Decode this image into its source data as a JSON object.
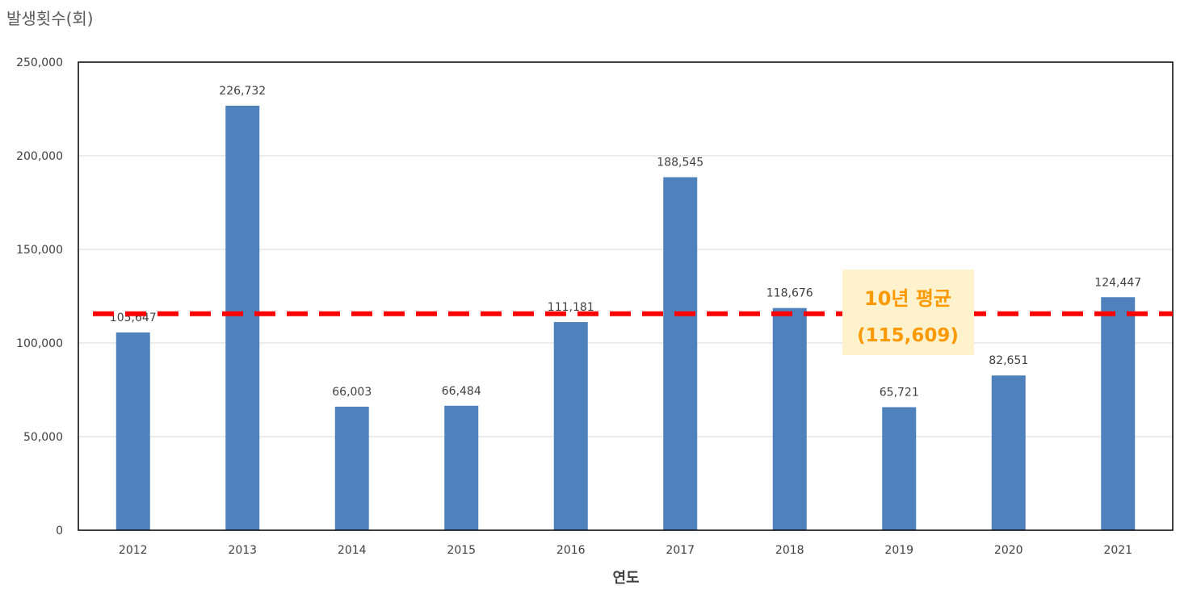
{
  "chart_data": {
    "type": "bar",
    "ylabel": "발생횟수(회)",
    "xlabel": "연도",
    "categories": [
      "2012",
      "2013",
      "2014",
      "2015",
      "2016",
      "2017",
      "2018",
      "2019",
      "2020",
      "2021"
    ],
    "values": [
      105647,
      226732,
      66003,
      66484,
      111181,
      188545,
      118676,
      65721,
      82651,
      124447
    ],
    "value_labels": [
      "105,647",
      "226,732",
      "66,003",
      "66,484",
      "111,181",
      "188,545",
      "118,676",
      "65,721",
      "82,651",
      "124,447"
    ],
    "ylim": [
      0,
      250000
    ],
    "yticks": [
      0,
      50000,
      100000,
      150000,
      200000,
      250000
    ],
    "ytick_labels": [
      "0",
      "50,000",
      "100,000",
      "150,000",
      "200,000",
      "250,000"
    ],
    "grid": true,
    "average": {
      "value": 115609,
      "label_line1": "10년 평균",
      "label_line2": "(115,609)"
    },
    "colors": {
      "bar": "#4F81BD",
      "average_line": "#FF0000",
      "average_label_text": "#FF9900",
      "average_label_bg": "#FFF2CC",
      "gridline": "#D9D9D9",
      "axis": "#000000",
      "text": "#404040"
    }
  }
}
